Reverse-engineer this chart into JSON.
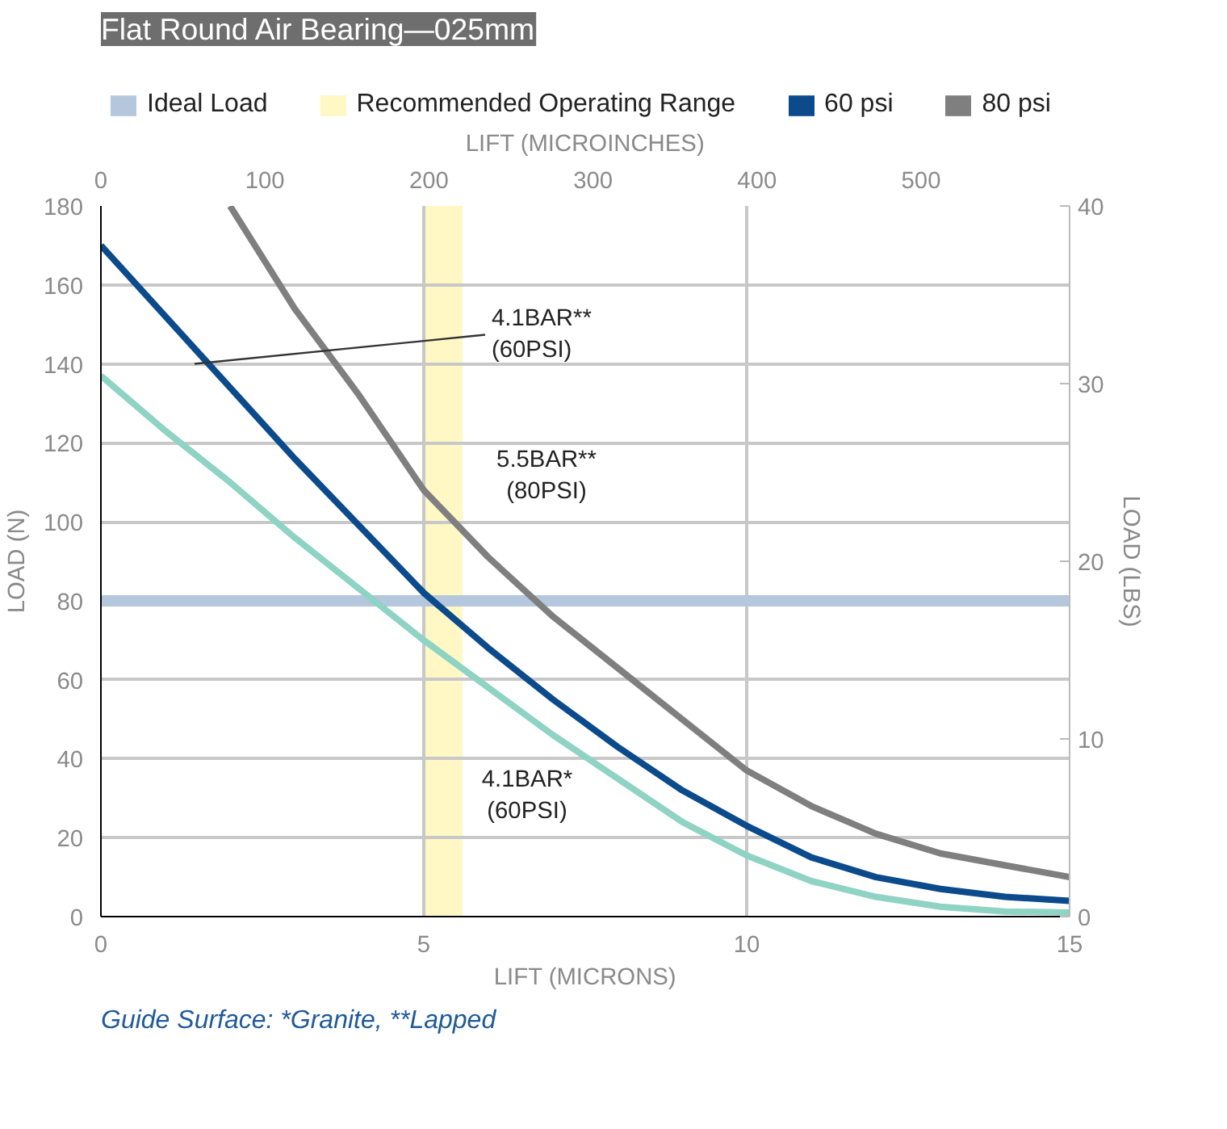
{
  "chart_data": {
    "type": "line",
    "title": "Flat Round Air Bearing—025mm",
    "xlabel": "LIFT (MICRONS)",
    "ylabel": "LOAD (N)",
    "y2label": "LOAD (LBS)",
    "x2label": "LIFT (MICROINCHES)",
    "xlim": [
      0,
      15
    ],
    "xticks": [
      0,
      5,
      10,
      15
    ],
    "ylim": [
      0,
      180
    ],
    "yticks": [
      0,
      20,
      40,
      60,
      80,
      100,
      120,
      140,
      160,
      180
    ],
    "x2lim": [
      0,
      590.55
    ],
    "x2ticks": [
      0,
      100,
      200,
      300,
      400,
      500
    ],
    "y2lim": [
      0,
      40
    ],
    "y2ticks": [
      0,
      10,
      20,
      30,
      40
    ],
    "x": [
      0,
      1,
      2,
      3,
      4,
      5,
      6,
      7,
      8,
      9,
      10,
      11,
      12,
      13,
      14,
      15
    ],
    "series": [
      {
        "color": "#8fd3c4",
        "values": [
          137,
          123,
          110,
          96,
          83,
          70,
          58,
          46,
          35,
          24,
          15.5,
          9,
          5,
          2.5,
          1.3,
          1
        ]
      },
      {
        "name": "60 psi",
        "color": "#0b4a8b",
        "values": [
          170,
          152,
          134,
          116,
          99,
          82,
          68,
          55,
          43,
          32,
          23,
          15,
          10,
          7,
          5,
          4
        ]
      },
      {
        "name": "80 psi",
        "color": "#7f7f7f",
        "x": [
          2,
          3,
          4,
          5,
          6,
          7,
          8,
          9,
          10,
          11,
          12,
          13,
          14,
          15
        ],
        "values": [
          180,
          154,
          132,
          108,
          91,
          76,
          63,
          50,
          37,
          28,
          21,
          16,
          13,
          10
        ]
      }
    ],
    "ref_lines": [
      {
        "axis": "y",
        "value": 80,
        "label": "Ideal Load",
        "color": "#b4c7dc"
      }
    ],
    "bands": [
      {
        "axis": "x",
        "from": 5,
        "to": 5.6,
        "label": "Recommended Operating Range",
        "color": "#fff8c4"
      }
    ],
    "annotations": [
      {
        "text": "4.1BAR**\n(60PSI)",
        "x": 1.45,
        "y": 140
      },
      "5.5BAR**\n(80PSI)",
      "4.1BAR*\n(60PSI)",
      "Guide Surface: *Granite, **Lapped"
    ],
    "grid": true,
    "legend": "top"
  }
}
